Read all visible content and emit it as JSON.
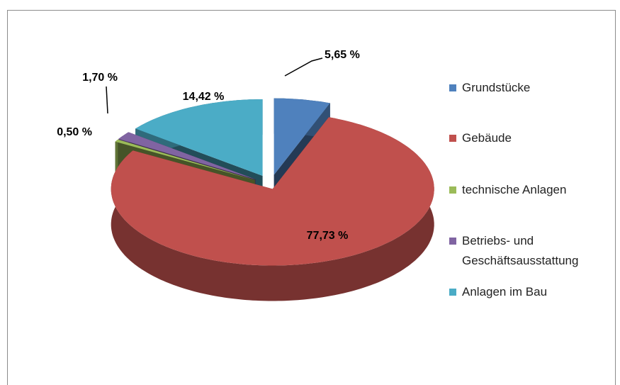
{
  "chart_data": {
    "type": "pie",
    "categories": [
      "Grundstücke",
      "Gebäude",
      "technische Anlagen",
      "Betriebs- und Geschäftsausstattung",
      "Anlagen im Bau"
    ],
    "values": [
      5.65,
      77.73,
      0.5,
      1.7,
      14.42
    ],
    "value_labels": [
      "5,65 %",
      "77,73 %",
      "0,50 %",
      "1,70 %",
      "14,42 %"
    ],
    "colors": [
      "#4f81bd",
      "#c0504d",
      "#9bbb59",
      "#8064a2",
      "#4bacc6"
    ],
    "legend": "right"
  }
}
